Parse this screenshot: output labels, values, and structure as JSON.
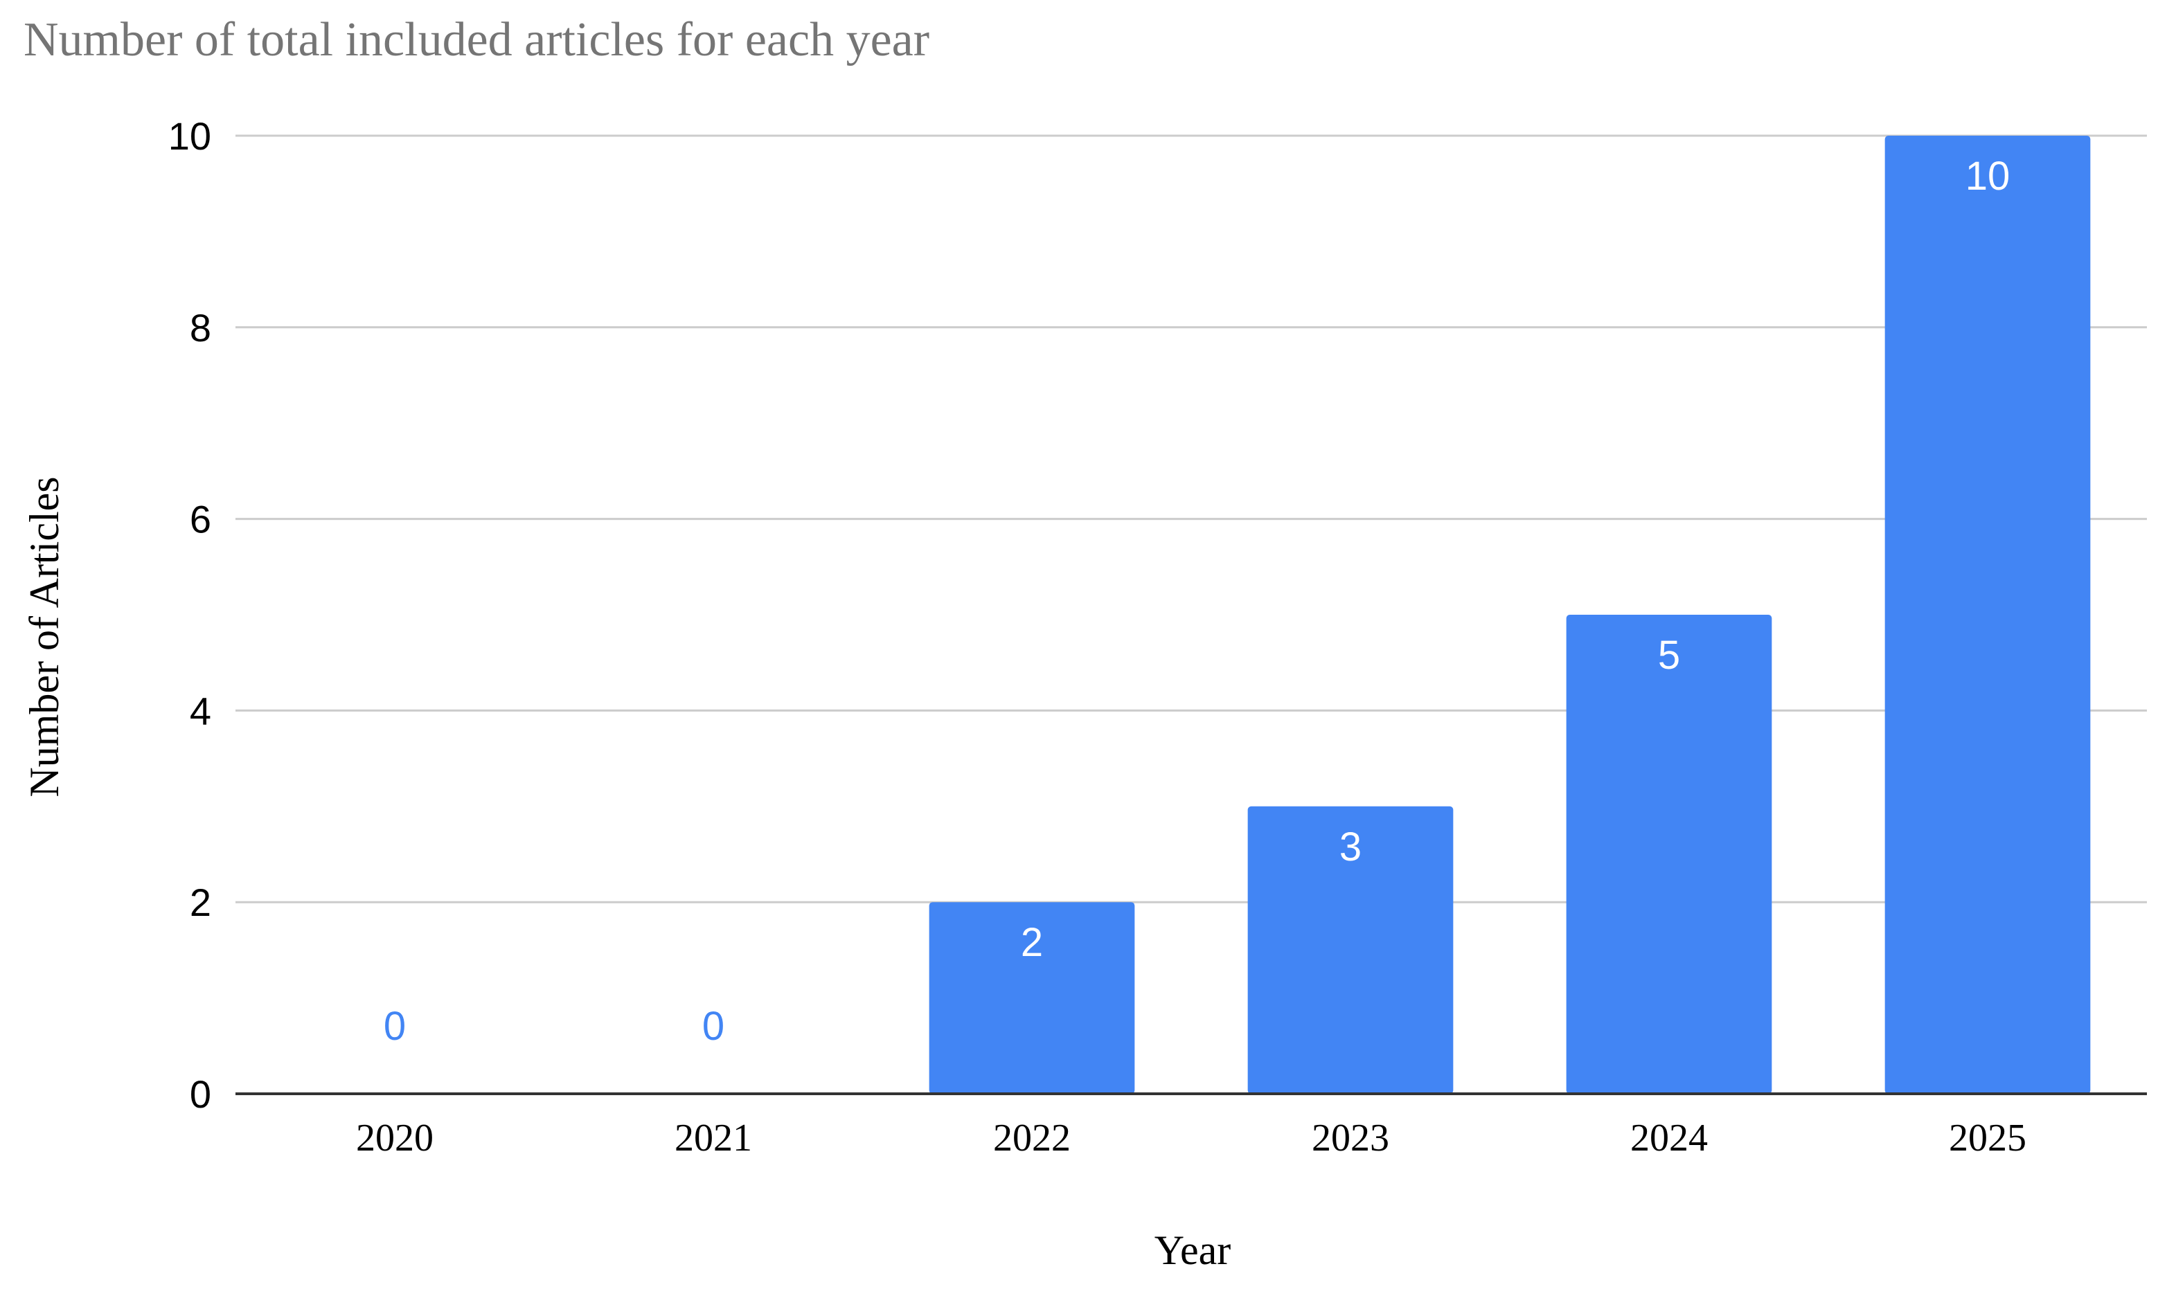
{
  "chart_data": {
    "type": "bar",
    "title": "Number of total included articles for each year",
    "xlabel": "Year",
    "ylabel": "Number of Articles",
    "categories": [
      "2020",
      "2021",
      "2022",
      "2023",
      "2024",
      "2025"
    ],
    "values": [
      0,
      0,
      2,
      3,
      5,
      10
    ],
    "data_labels": [
      "0",
      "0",
      "2",
      "3",
      "5",
      "10"
    ],
    "ylim": [
      0,
      10
    ],
    "yticks": [
      "0",
      "2",
      "4",
      "6",
      "8",
      "10"
    ],
    "grid": true,
    "legend": "none",
    "colors": {
      "bar": "#4285f4",
      "label_inside": "#ffffff",
      "label_outside": "#4285f4",
      "title": "#757575",
      "grid": "#cccccc"
    }
  }
}
